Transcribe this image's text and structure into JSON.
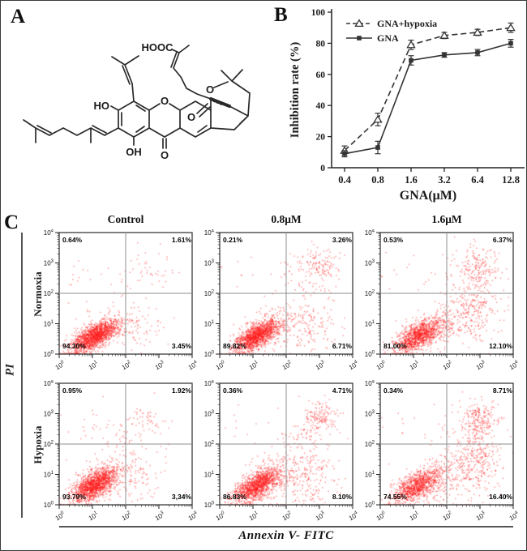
{
  "figure": {
    "panels": {
      "a": "A",
      "b": "B",
      "c": "C"
    },
    "panel_a_labels": {
      "hooc": "HOOC",
      "ho": "HO",
      "oh": "OH",
      "ring_o": "O",
      "ketone_o": "O",
      "ether_o": "O",
      "cage_o": "O"
    }
  },
  "chart_data": [
    {
      "type": "line",
      "panel": "B",
      "title": "",
      "xlabel": "GNA(μM)",
      "ylabel": "Inhibition rate (%)",
      "categories": [
        "0.4",
        "0.8",
        "1.6",
        "3.2",
        "6.4",
        "12.8"
      ],
      "ylim": [
        0,
        100
      ],
      "yticks": [
        0,
        20,
        40,
        60,
        80,
        100
      ],
      "legend_position": "top-left",
      "grid": false,
      "series": [
        {
          "name": "GNA+hypoxia",
          "line": "dashed",
          "marker": "open-triangle",
          "values": [
            11,
            31,
            79,
            85,
            87,
            90
          ],
          "errors": [
            3,
            4,
            3,
            2,
            2,
            3
          ]
        },
        {
          "name": "GNA",
          "line": "solid",
          "marker": "filled-square",
          "values": [
            9,
            13,
            69,
            72.5,
            74,
            80
          ],
          "errors": [
            2,
            4,
            3,
            1.5,
            2,
            2.5
          ]
        }
      ]
    },
    {
      "type": "scatter",
      "panel": "C",
      "xlabel": "Annexin V- FITC",
      "ylabel": "PI",
      "x_scale": "log10",
      "y_scale": "log10",
      "axis": {
        "decades": [
          0,
          1,
          2,
          3,
          4
        ]
      },
      "gates": {
        "x_exp": 2,
        "y_exp": 2
      },
      "dot_color": "#ff1f1f",
      "row_labels": [
        "Normoxia",
        "Hypoxia"
      ],
      "col_titles": [
        "Control",
        "0.8μM",
        "1.6μM"
      ],
      "plots": [
        {
          "row": "Normoxia",
          "col": "Control",
          "seed": 101,
          "quadrants": {
            "ul": "0.64%",
            "ur": "1.61%",
            "ll": "94.30%",
            "lr": "3.45%"
          },
          "clusters": [
            [
              1500,
              1.05,
              0.6,
              0.34,
              0.2,
              0.5
            ],
            [
              150,
              1.45,
              0.85,
              0.55,
              0.35,
              0.3
            ],
            [
              55,
              2.5,
              2.65,
              0.55,
              0.45,
              0
            ],
            [
              45,
              2.45,
              0.75,
              0.4,
              0.35,
              0
            ],
            [
              12,
              0.55,
              2.6,
              0.35,
              0.4,
              0
            ]
          ]
        },
        {
          "row": "Normoxia",
          "col": "0.8μM",
          "seed": 102,
          "quadrants": {
            "ul": "0.21%",
            "ur": "3.26%",
            "ll": "89.82%",
            "lr": "6.71%"
          },
          "clusters": [
            [
              1400,
              1.1,
              0.6,
              0.34,
              0.2,
              0.5
            ],
            [
              170,
              1.75,
              0.95,
              0.5,
              0.4,
              0.3
            ],
            [
              120,
              2.65,
              0.85,
              0.45,
              0.4,
              0
            ],
            [
              110,
              2.95,
              2.95,
              0.28,
              0.25,
              0
            ],
            [
              70,
              2.55,
              2.45,
              0.55,
              0.5,
              0
            ],
            [
              8,
              0.5,
              2.7,
              0.3,
              0.3,
              0
            ]
          ]
        },
        {
          "row": "Normoxia",
          "col": "1.6μM",
          "seed": 103,
          "quadrants": {
            "ul": "0.53%",
            "ur": "6.37%",
            "ll": "81.00%",
            "lr": "12.10%"
          },
          "clusters": [
            [
              1150,
              1.15,
              0.62,
              0.36,
              0.22,
              0.5
            ],
            [
              220,
              1.95,
              0.95,
              0.55,
              0.4,
              0.3
            ],
            [
              180,
              2.9,
              1.45,
              0.33,
              0.5,
              0
            ],
            [
              140,
              3.0,
              2.9,
              0.3,
              0.35,
              0
            ],
            [
              90,
              2.5,
              2.4,
              0.6,
              0.5,
              0
            ],
            [
              10,
              0.55,
              2.7,
              0.35,
              0.35,
              0
            ]
          ]
        },
        {
          "row": "Hypoxia",
          "col": "Control",
          "seed": 104,
          "quadrants": {
            "ul": "0.95%",
            "ur": "1.92%",
            "ll": "93.79%",
            "lr": "3,34%"
          },
          "clusters": [
            [
              1450,
              1.05,
              0.68,
              0.34,
              0.22,
              0.5
            ],
            [
              160,
              1.5,
              1.05,
              0.6,
              0.45,
              0.3
            ],
            [
              40,
              2.45,
              2.85,
              0.28,
              0.18,
              0
            ],
            [
              55,
              2.2,
              2.45,
              0.6,
              0.45,
              0
            ],
            [
              60,
              2.35,
              0.8,
              0.4,
              0.4,
              0
            ],
            [
              15,
              0.7,
              2.65,
              0.45,
              0.4,
              0
            ]
          ]
        },
        {
          "row": "Hypoxia",
          "col": "0.8μM",
          "seed": 105,
          "quadrants": {
            "ul": "0.36%",
            "ur": "4.71%",
            "ll": "86.83%",
            "lr": "8.10%"
          },
          "clusters": [
            [
              1300,
              1.1,
              0.65,
              0.35,
              0.22,
              0.5
            ],
            [
              210,
              1.9,
              1.05,
              0.55,
              0.5,
              0.3
            ],
            [
              150,
              2.7,
              0.95,
              0.45,
              0.5,
              0
            ],
            [
              120,
              3.0,
              2.9,
              0.22,
              0.22,
              0
            ],
            [
              85,
              2.7,
              2.4,
              0.5,
              0.5,
              0
            ],
            [
              8,
              0.5,
              2.7,
              0.3,
              0.3,
              0
            ]
          ]
        },
        {
          "row": "Hypoxia",
          "col": "1.6μM",
          "seed": 106,
          "quadrants": {
            "ul": "0.34%",
            "ur": "8.71%",
            "ll": "74.55%",
            "lr": "16.40%"
          },
          "clusters": [
            [
              1000,
              1.1,
              0.65,
              0.36,
              0.22,
              0.5
            ],
            [
              230,
              2.0,
              0.95,
              0.55,
              0.45,
              0.3
            ],
            [
              260,
              3.0,
              1.55,
              0.3,
              0.7,
              0
            ],
            [
              150,
              3.0,
              2.85,
              0.27,
              0.3,
              0
            ],
            [
              85,
              2.55,
              2.3,
              0.55,
              0.55,
              0
            ],
            [
              8,
              0.5,
              2.7,
              0.3,
              0.3,
              0
            ]
          ]
        }
      ]
    }
  ]
}
